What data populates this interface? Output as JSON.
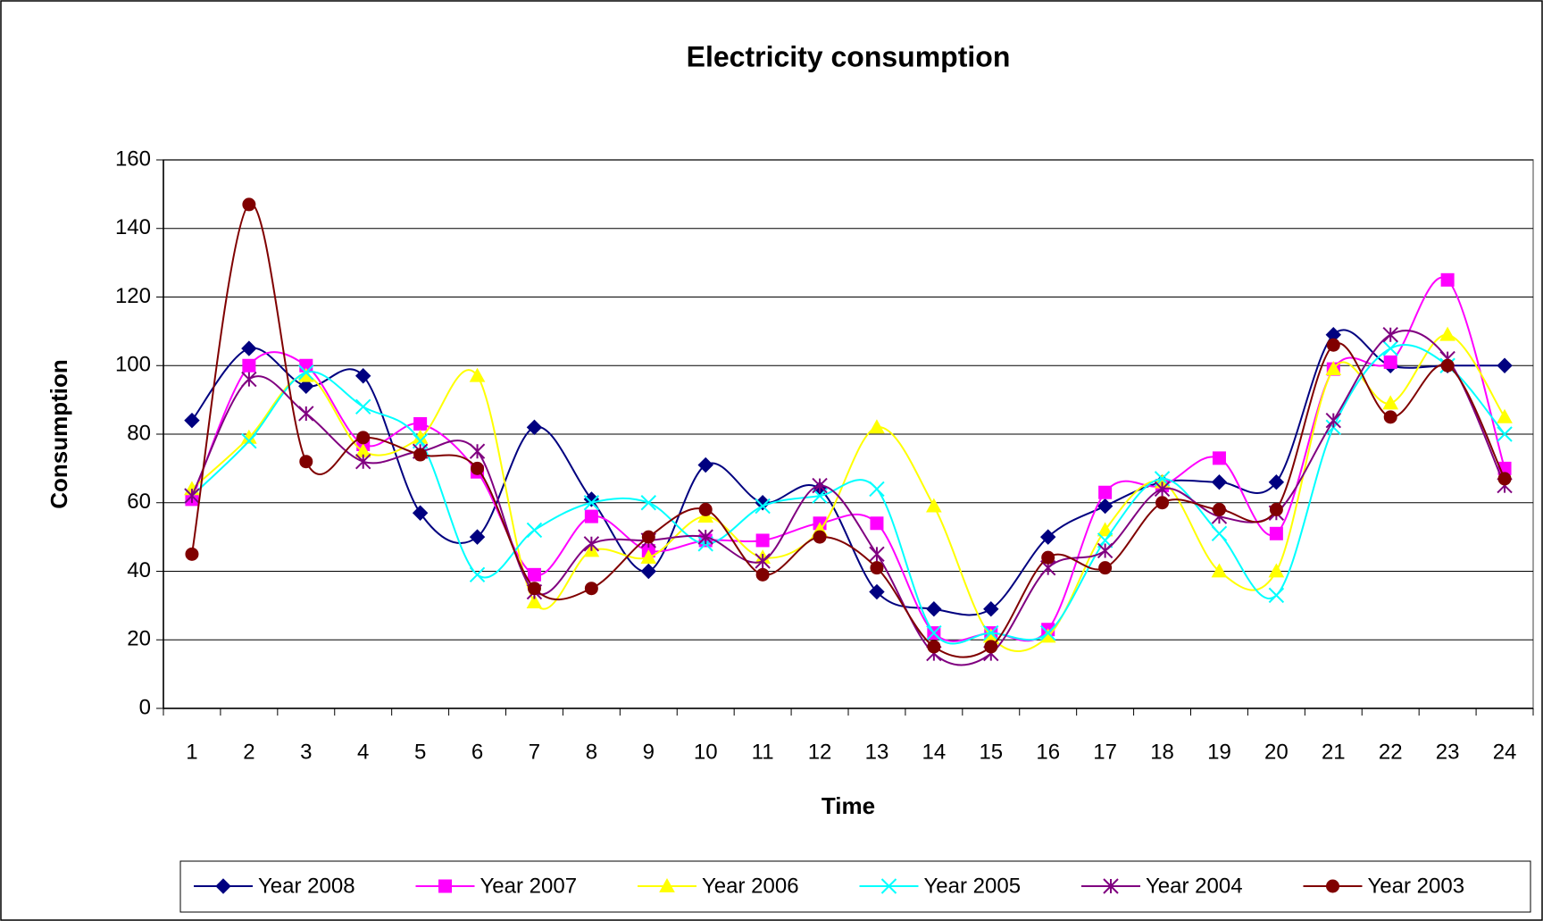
{
  "chart_data": {
    "type": "line",
    "title": "Electricity consumption",
    "x_label": "Time",
    "y_label": "Consumption",
    "categories": [
      "1",
      "2",
      "3",
      "4",
      "5",
      "6",
      "7",
      "8",
      "9",
      "10",
      "11",
      "12",
      "13",
      "14",
      "15",
      "16",
      "17",
      "18",
      "19",
      "20",
      "21",
      "22",
      "23",
      "24"
    ],
    "ylim": [
      0,
      160
    ],
    "yticks": [
      0,
      20,
      40,
      60,
      80,
      100,
      120,
      140,
      160
    ],
    "grid": true,
    "smooth": true,
    "legend": "bottom",
    "series": [
      {
        "name": "Year 2008",
        "color": "#000080",
        "marker": "diamond",
        "values": [
          84,
          105,
          94,
          97,
          57,
          50,
          82,
          61,
          40,
          71,
          60,
          64,
          34,
          29,
          29,
          50,
          59,
          66,
          66,
          66,
          109,
          100,
          100,
          100
        ]
      },
      {
        "name": "Year 2007",
        "color": "#ff00ff",
        "marker": "square",
        "values": [
          61,
          100,
          100,
          77,
          83,
          69,
          39,
          56,
          46,
          49,
          49,
          54,
          54,
          22,
          22,
          23,
          63,
          65,
          73,
          51,
          99,
          101,
          125,
          70
        ]
      },
      {
        "name": "Year 2006",
        "color": "#ffff00",
        "marker": "triangle",
        "values": [
          64,
          79,
          97,
          75,
          79,
          97,
          31,
          46,
          44,
          56,
          44,
          52,
          82,
          59,
          21,
          21,
          52,
          66,
          40,
          40,
          99,
          89,
          109,
          85
        ]
      },
      {
        "name": "Year 2005",
        "color": "#00ffff",
        "marker": "x",
        "values": [
          62,
          78,
          98,
          88,
          78,
          39,
          52,
          60,
          60,
          48,
          59,
          62,
          64,
          22,
          22,
          22,
          49,
          67,
          51,
          33,
          82,
          105,
          100,
          80
        ]
      },
      {
        "name": "Year 2004",
        "color": "#800080",
        "marker": "star",
        "values": [
          62,
          96,
          86,
          72,
          75,
          75,
          34,
          48,
          49,
          50,
          43,
          65,
          45,
          16,
          16,
          41,
          46,
          64,
          56,
          57,
          84,
          109,
          102,
          65
        ]
      },
      {
        "name": "Year 2003",
        "color": "#800000",
        "marker": "circle",
        "values": [
          45,
          147,
          72,
          79,
          74,
          70,
          35,
          35,
          50,
          58,
          39,
          50,
          41,
          18,
          18,
          44,
          41,
          60,
          58,
          58,
          106,
          85,
          100,
          67
        ]
      }
    ]
  }
}
